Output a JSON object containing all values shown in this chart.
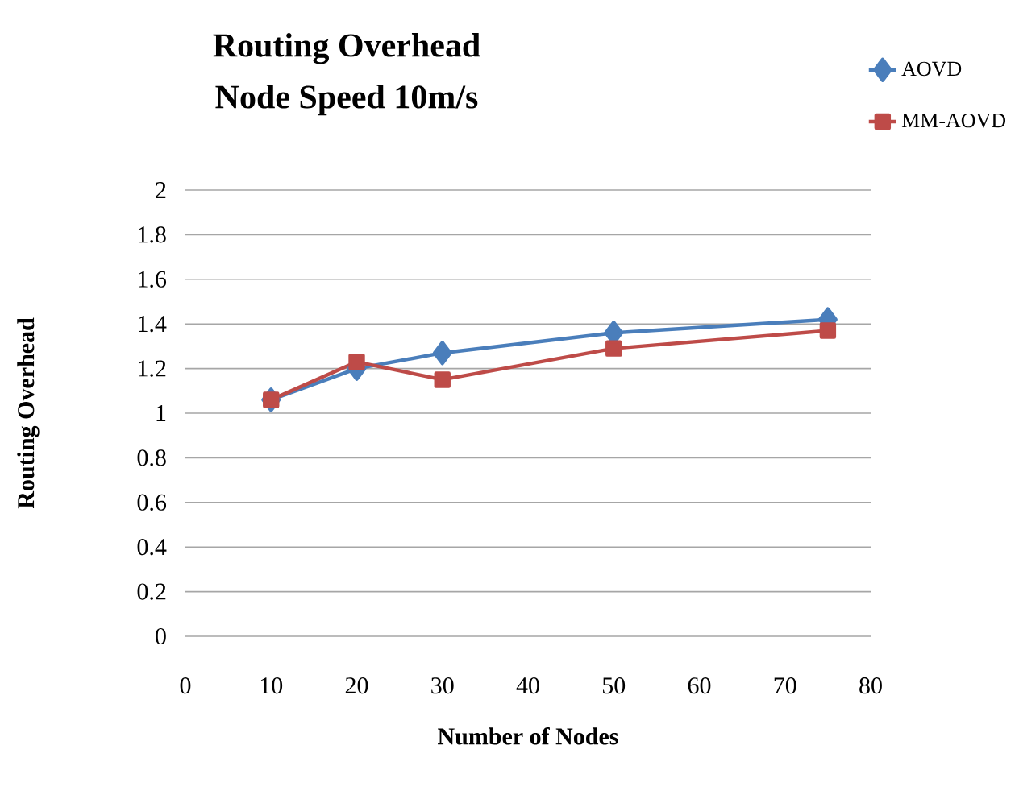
{
  "chart_data": {
    "type": "line",
    "title": "Routing Overhead",
    "subtitle": "Node Speed 10m/s",
    "xlabel": "Number of Nodes",
    "ylabel": "Routing Overhead",
    "x": [
      10,
      20,
      30,
      50,
      75
    ],
    "series": [
      {
        "name": "AOVD",
        "color": "#4a7ebb",
        "marker": "diamond",
        "values": [
          1.06,
          1.2,
          1.27,
          1.36,
          1.42
        ]
      },
      {
        "name": "MM-AOVD",
        "color": "#be4b48",
        "marker": "square",
        "values": [
          1.06,
          1.23,
          1.15,
          1.29,
          1.37
        ]
      }
    ],
    "xlim": [
      0,
      80
    ],
    "xticks": [
      0,
      10,
      20,
      30,
      40,
      50,
      60,
      70,
      80
    ],
    "ylim": [
      0,
      2
    ],
    "yticks": [
      0,
      0.2,
      0.4,
      0.6,
      0.8,
      1,
      1.2,
      1.4,
      1.6,
      1.8,
      2
    ],
    "grid": "y",
    "legend": "top right",
    "line_style": "solid"
  }
}
